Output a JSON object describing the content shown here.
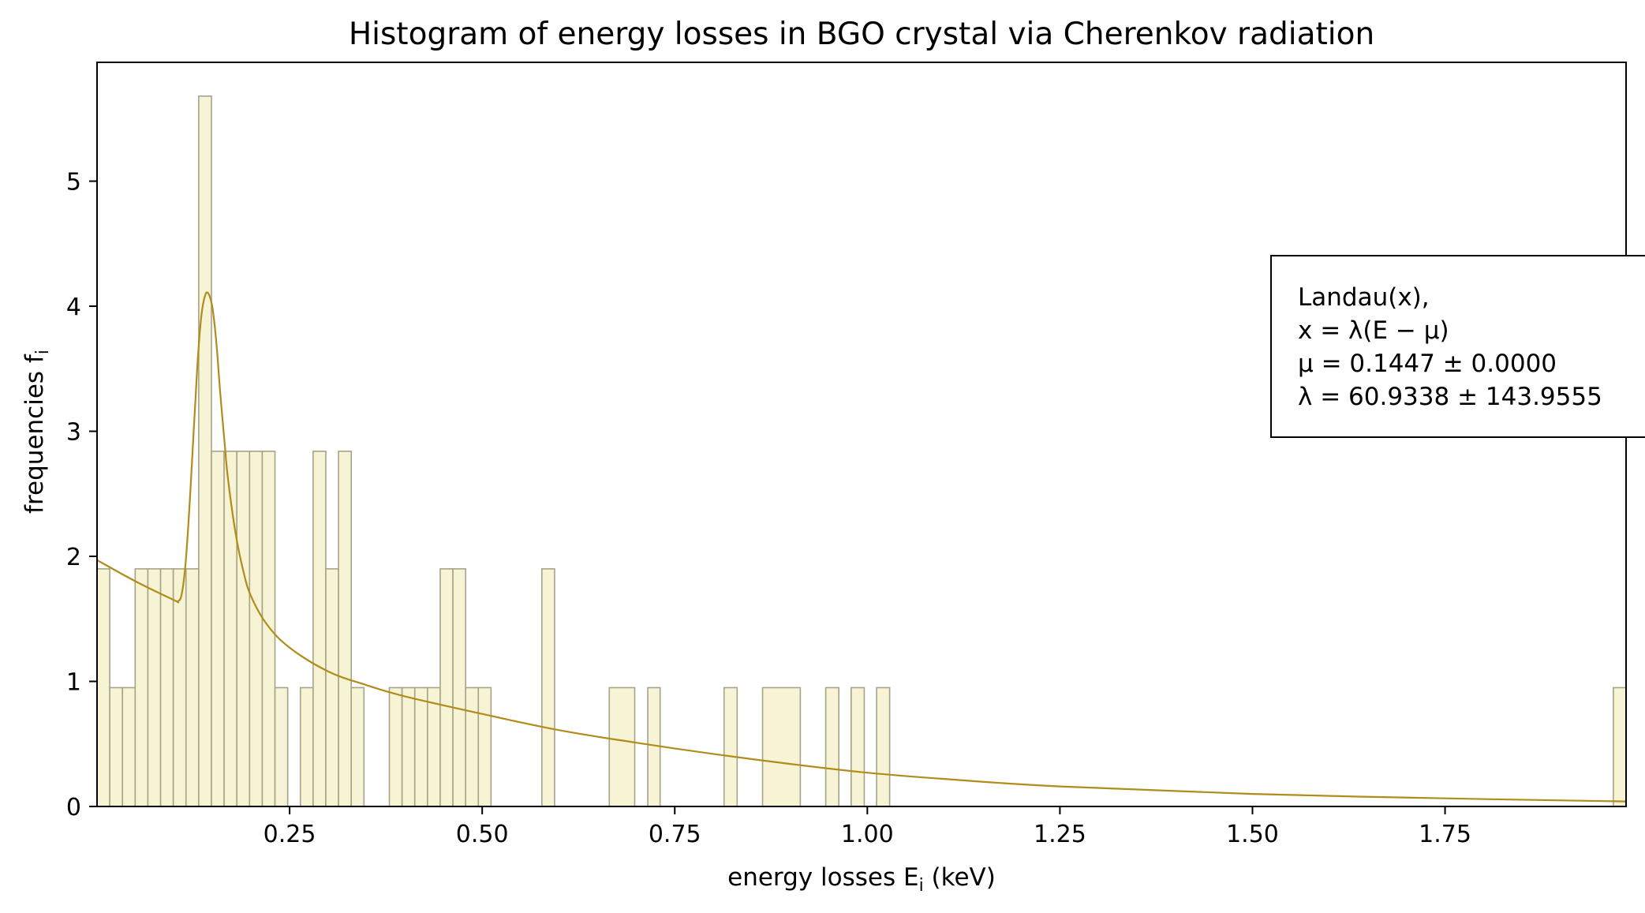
{
  "chart_data": {
    "type": "bar",
    "title": "Histogram of energy losses in BGO crystal via Cherenkov radiation",
    "xlabel": "energy losses E",
    "xlabel_sub": "i",
    "xlabel_unit": " (keV)",
    "ylabel": "frequencies f",
    "ylabel_sub": "i",
    "xlim": [
      0.0,
      1.985
    ],
    "ylim": [
      0,
      5.95
    ],
    "xticks": [
      0.25,
      0.5,
      0.75,
      1.0,
      1.25,
      1.5,
      1.75
    ],
    "xtick_labels": [
      "0.25",
      "0.50",
      "0.75",
      "1.00",
      "1.25",
      "1.50",
      "1.75"
    ],
    "yticks": [
      0,
      1,
      2,
      3,
      4,
      5
    ],
    "ytick_labels": [
      "0",
      "1",
      "2",
      "3",
      "4",
      "5"
    ],
    "histogram": {
      "bin_start": 0.0,
      "bin_width": 0.0165,
      "fill_color": "#f7f4d5",
      "edge_color": "#a5a38a",
      "heights": [
        1.9,
        0.95,
        0.95,
        1.9,
        1.9,
        1.9,
        1.9,
        1.9,
        5.68,
        2.84,
        2.84,
        2.84,
        2.84,
        2.84,
        0.95,
        0,
        0.95,
        2.84,
        1.9,
        2.84,
        0.95,
        0,
        0,
        0.95,
        0.95,
        0.95,
        0.95,
        1.9,
        1.9,
        0.95,
        0.95,
        0,
        0,
        0,
        0,
        1.9,
        0,
        0,
        0,
        0,
        0,
        0,
        0,
        0,
        0,
        0,
        0,
        0,
        0,
        0,
        0,
        0,
        0,
        0,
        0,
        0,
        0,
        0,
        0,
        0,
        0,
        0,
        0,
        0,
        0,
        0,
        0,
        0,
        0,
        0,
        0,
        0,
        0,
        0,
        0,
        0,
        0,
        0,
        0,
        0,
        0,
        0,
        0,
        0,
        0,
        0,
        0,
        0,
        0,
        0,
        0,
        0,
        0,
        0,
        0,
        0,
        0,
        0,
        0,
        0,
        0,
        0,
        0,
        0,
        0,
        0,
        0,
        0,
        0,
        0,
        0,
        0,
        0,
        0,
        0,
        0,
        0,
        0,
        0,
        0.95
      ],
      "sparse_bars": [
        {
          "x0": 0.665,
          "x1": 0.698,
          "h": 0.95
        },
        {
          "x0": 0.715,
          "x1": 0.731,
          "h": 0.95
        },
        {
          "x0": 0.814,
          "x1": 0.831,
          "h": 0.95
        },
        {
          "x0": 0.864,
          "x1": 0.913,
          "h": 0.95
        },
        {
          "x0": 0.946,
          "x1": 0.963,
          "h": 0.95
        },
        {
          "x0": 0.979,
          "x1": 0.996,
          "h": 0.95
        },
        {
          "x0": 1.012,
          "x1": 1.029,
          "h": 0.95
        }
      ]
    },
    "fit_curve": {
      "name": "Landau(x) fit",
      "color": "#b08c1a",
      "x": [
        0.0,
        0.05,
        0.1,
        0.105,
        0.11,
        0.115,
        0.12,
        0.125,
        0.13,
        0.135,
        0.14,
        0.1447,
        0.15,
        0.155,
        0.16,
        0.165,
        0.17,
        0.18,
        0.19,
        0.2,
        0.22,
        0.25,
        0.3,
        0.35,
        0.4,
        0.5,
        0.6,
        0.7,
        0.8,
        0.9,
        1.0,
        1.1,
        1.25,
        1.5,
        1.75,
        1.985
      ],
      "y": [
        1.97,
        1.8,
        1.65,
        1.64,
        1.7,
        1.95,
        2.4,
        2.95,
        3.5,
        3.9,
        4.08,
        4.1,
        3.98,
        3.7,
        3.3,
        2.95,
        2.62,
        2.18,
        1.88,
        1.68,
        1.46,
        1.27,
        1.08,
        0.97,
        0.88,
        0.74,
        0.61,
        0.51,
        0.42,
        0.34,
        0.27,
        0.22,
        0.16,
        0.1,
        0.065,
        0.04
      ]
    },
    "legend": {
      "placement": "right",
      "lines": [
        "Landau(x),",
        "x = λ(E − μ)",
        "μ = 0.1447 ± 0.0000",
        "λ = 60.9338 ± 143.9555"
      ]
    }
  }
}
